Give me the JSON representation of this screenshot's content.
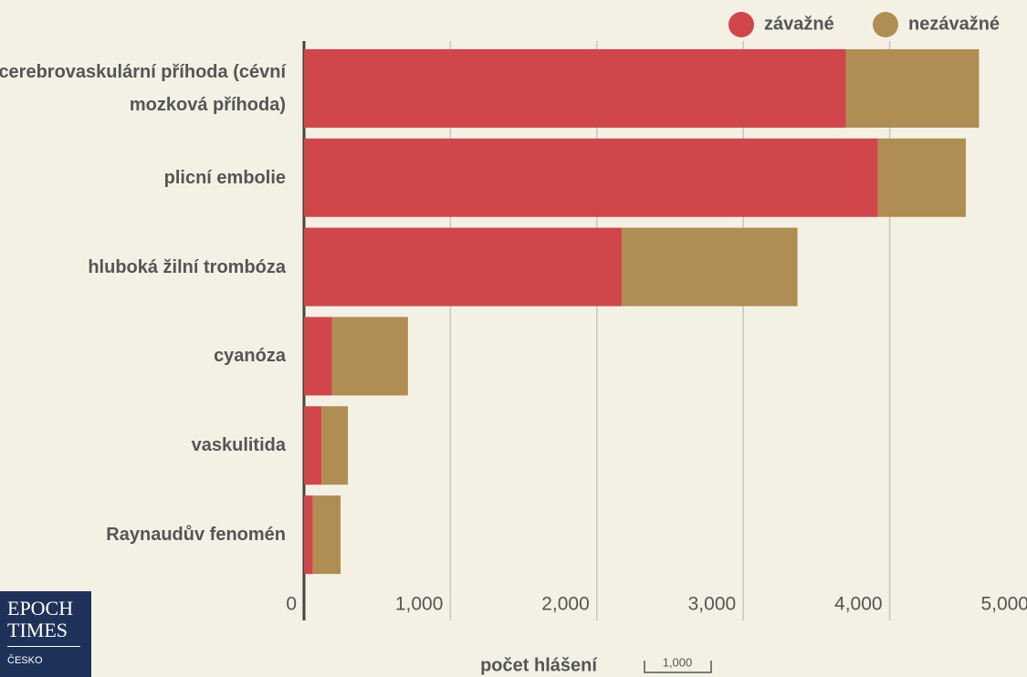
{
  "chart_data": {
    "type": "stacked-barh",
    "categories": [
      "cerebrovaskulární příhoda (cévní mozková příhoda)",
      "plicní embolie",
      "hluboká žilní trombóza",
      "cyanóza",
      "vaskulitida",
      "Raynaudův fenomén"
    ],
    "series": [
      {
        "name": "závažné",
        "color": "#d0464b",
        "values": [
          3700,
          3920,
          2170,
          190,
          120,
          60
        ]
      },
      {
        "name": "nezávažné",
        "color": "#b08d52",
        "values": [
          910,
          600,
          1200,
          520,
          180,
          190
        ]
      }
    ],
    "xlabel": "počet hlášení",
    "annotations": [
      "1,000"
    ],
    "xlim": [
      0,
      5000
    ],
    "xticks": [
      0,
      {
        "value": 1000,
        "label": "1,000"
      },
      {
        "value": 2000,
        "label": "2,000"
      },
      {
        "value": 3000,
        "label": "3,000"
      },
      {
        "value": 4000,
        "label": "4,000"
      },
      {
        "value": 5000,
        "label": "5,000"
      }
    ],
    "grid": true,
    "legend": "top-right"
  },
  "logo": {
    "lines": [
      "EPOCH",
      "TIMES",
      "ČESKO"
    ]
  }
}
